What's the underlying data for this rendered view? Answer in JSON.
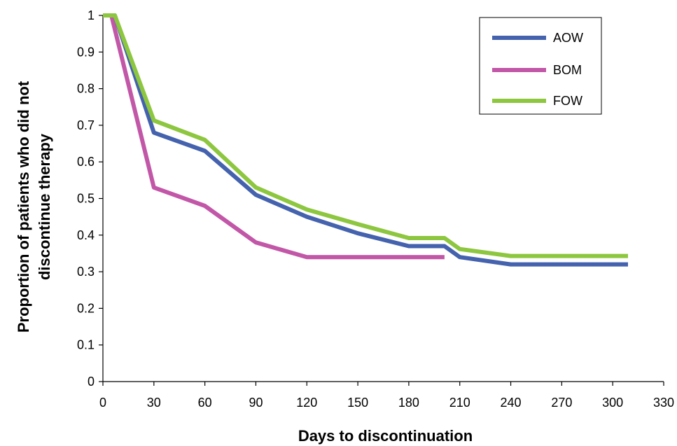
{
  "chart_data": {
    "type": "line",
    "title": "",
    "xlabel": "Days to discontinuation",
    "ylabel_lines": [
      "Proportion of patients who did not",
      "discontinue therapy"
    ],
    "xlim": [
      0,
      330
    ],
    "ylim": [
      0,
      1
    ],
    "x_ticks": [
      0,
      30,
      60,
      90,
      120,
      150,
      180,
      210,
      240,
      270,
      300,
      330
    ],
    "x_tick_labels": [
      "0",
      "30",
      "60",
      "90",
      "120",
      "150",
      "180",
      "210",
      "240",
      "270",
      "300",
      "330"
    ],
    "y_ticks": [
      0,
      0.1,
      0.2,
      0.3,
      0.4,
      0.5,
      0.6,
      0.7,
      0.8,
      0.9,
      1
    ],
    "y_tick_labels": [
      "0",
      "0.1",
      "0.2",
      "0.3",
      "0.4",
      "0.5",
      "0.6",
      "0.7",
      "0.8",
      "0.9",
      "1"
    ],
    "grid": false,
    "legend_position": "top-right",
    "series": [
      {
        "name": "AOW",
        "color": "#4462ad",
        "points": [
          [
            0,
            1
          ],
          [
            7,
            1
          ],
          [
            30,
            0.68
          ],
          [
            60,
            0.63
          ],
          [
            90,
            0.51
          ],
          [
            120,
            0.45
          ],
          [
            150,
            0.405
          ],
          [
            180,
            0.37
          ],
          [
            201,
            0.37
          ],
          [
            210,
            0.34
          ],
          [
            240,
            0.32
          ],
          [
            309,
            0.32
          ]
        ]
      },
      {
        "name": "BOM",
        "color": "#c257a8",
        "points": [
          [
            0,
            1
          ],
          [
            5,
            1
          ],
          [
            30,
            0.53
          ],
          [
            60,
            0.48
          ],
          [
            90,
            0.38
          ],
          [
            120,
            0.34
          ],
          [
            150,
            0.34
          ],
          [
            180,
            0.34
          ],
          [
            201,
            0.34
          ]
        ]
      },
      {
        "name": "FOW",
        "color": "#8dc63f",
        "points": [
          [
            0,
            1
          ],
          [
            7,
            1
          ],
          [
            30,
            0.713
          ],
          [
            60,
            0.66
          ],
          [
            90,
            0.53
          ],
          [
            120,
            0.47
          ],
          [
            150,
            0.43
          ],
          [
            180,
            0.392
          ],
          [
            201,
            0.392
          ],
          [
            210,
            0.362
          ],
          [
            240,
            0.343
          ],
          [
            309,
            0.343
          ]
        ]
      }
    ]
  }
}
